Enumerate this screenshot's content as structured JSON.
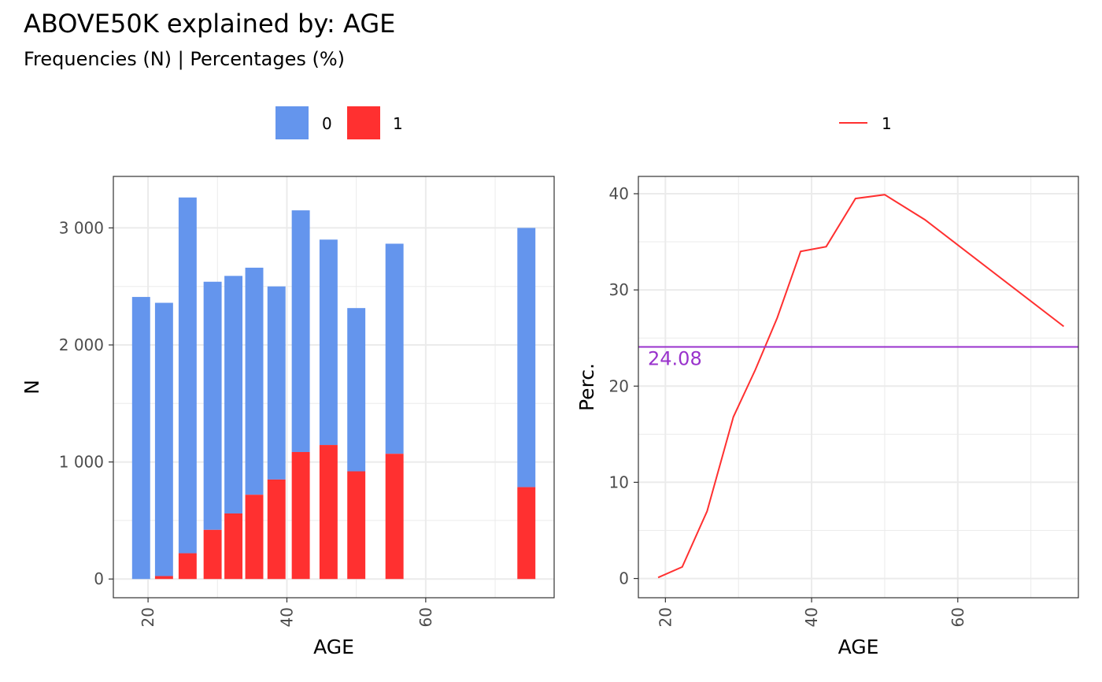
{
  "title": "ABOVE50K explained by: AGE",
  "subtitle": "Frequencies (N) | Percentages (%)",
  "colors": {
    "class0": "#6495ED",
    "class1": "#FF3030",
    "reference": "#9932CC",
    "grid": "#EBEBEB",
    "panel_border": "#333333"
  },
  "chart_data": [
    {
      "type": "bar",
      "stacked": true,
      "xlabel": "AGE",
      "ylabel": "N",
      "xlim": [
        15,
        78.5
      ],
      "ylim": [
        -160,
        3440
      ],
      "x_ticks": [
        20,
        40,
        60
      ],
      "x_tick_labels": [
        "20",
        "40",
        "60"
      ],
      "y_ticks": [
        0,
        1000,
        2000,
        3000
      ],
      "y_tick_labels": [
        "0",
        "1 000",
        "2 000",
        "3 000"
      ],
      "grid": true,
      "legend": {
        "position": "top",
        "entries": [
          "0",
          "1"
        ]
      },
      "bars": [
        {
          "x": 19.0,
          "width": 2.6,
          "total": 2410,
          "class1": 0
        },
        {
          "x": 22.3,
          "width": 2.6,
          "total": 2360,
          "class1": 25
        },
        {
          "x": 25.7,
          "width": 2.6,
          "total": 3260,
          "class1": 220
        },
        {
          "x": 29.3,
          "width": 2.6,
          "total": 2540,
          "class1": 420
        },
        {
          "x": 32.3,
          "width": 2.6,
          "total": 2590,
          "class1": 560
        },
        {
          "x": 35.3,
          "width": 2.6,
          "total": 2660,
          "class1": 720
        },
        {
          "x": 38.5,
          "width": 2.6,
          "total": 2500,
          "class1": 850
        },
        {
          "x": 42.0,
          "width": 2.6,
          "total": 3150,
          "class1": 1085
        },
        {
          "x": 46.0,
          "width": 2.6,
          "total": 2900,
          "class1": 1145
        },
        {
          "x": 50.0,
          "width": 2.6,
          "total": 2315,
          "class1": 920
        },
        {
          "x": 55.5,
          "width": 2.6,
          "total": 2865,
          "class1": 1070
        },
        {
          "x": 74.5,
          "width": 2.6,
          "total": 3000,
          "class1": 785
        }
      ]
    },
    {
      "type": "line",
      "xlabel": "AGE",
      "ylabel": "Perc.",
      "xlim": [
        16.3,
        76.5
      ],
      "ylim": [
        -2,
        41.8
      ],
      "x_ticks": [
        20,
        40,
        60
      ],
      "x_tick_labels": [
        "20",
        "40",
        "60"
      ],
      "y_ticks": [
        0,
        10,
        20,
        30,
        40
      ],
      "y_tick_labels": [
        "0",
        "10",
        "20",
        "30",
        "40"
      ],
      "grid": true,
      "legend": {
        "position": "top",
        "entries": [
          "1"
        ]
      },
      "series": [
        {
          "name": "1",
          "x": [
            19.0,
            22.3,
            25.7,
            29.3,
            32.3,
            35.3,
            38.5,
            42.0,
            46.0,
            50.0,
            55.5,
            74.5
          ],
          "y": [
            0.1,
            1.2,
            7.0,
            16.8,
            21.7,
            27.1,
            34.0,
            34.5,
            39.5,
            39.9,
            37.3,
            26.2
          ]
        }
      ],
      "reference_line": {
        "y": 24.08,
        "label": "24.08"
      }
    }
  ]
}
